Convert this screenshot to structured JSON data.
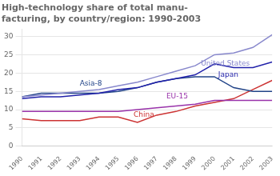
{
  "chart_data": {
    "type": "line",
    "title": "High-technology share of total manu-\nfacturing, by country/region: 1990-2003",
    "x": [
      1990,
      1991,
      1992,
      1993,
      1994,
      1995,
      1996,
      1997,
      1998,
      1999,
      2000,
      2001,
      2002,
      2003
    ],
    "series": [
      {
        "name": "United States",
        "color": "#8888cc",
        "values": [
          13.5,
          14.0,
          14.5,
          15.0,
          15.5,
          16.5,
          17.5,
          19.0,
          20.5,
          22.0,
          25.0,
          25.5,
          27.0,
          30.5
        ]
      },
      {
        "name": "Japan",
        "color": "#2222aa",
        "values": [
          13.0,
          13.5,
          13.5,
          14.0,
          14.5,
          15.5,
          16.0,
          17.5,
          18.5,
          19.5,
          22.5,
          21.5,
          21.5,
          23.0
        ]
      },
      {
        "name": "Asia-8",
        "color": "#224488",
        "values": [
          13.5,
          14.5,
          14.5,
          14.5,
          14.5,
          15.0,
          16.0,
          17.5,
          18.5,
          19.0,
          19.0,
          16.0,
          15.0,
          15.0
        ]
      },
      {
        "name": "EU-15",
        "color": "#9933aa",
        "values": [
          9.5,
          9.5,
          9.5,
          9.5,
          9.5,
          9.5,
          10.0,
          10.5,
          11.0,
          11.5,
          12.5,
          12.5,
          12.5,
          12.5
        ]
      },
      {
        "name": "China",
        "color": "#cc3333",
        "values": [
          7.5,
          7.0,
          7.0,
          7.0,
          8.0,
          8.0,
          6.5,
          8.5,
          9.5,
          11.0,
          12.0,
          13.0,
          15.5,
          18.0
        ]
      }
    ],
    "annotations": [
      {
        "text": "United States",
        "x": 1999.3,
        "y": 22.5,
        "color": "#8888cc"
      },
      {
        "text": "Japan",
        "x": 2000.2,
        "y": 19.5,
        "color": "#2222aa"
      },
      {
        "text": "Asia-8",
        "x": 1993.0,
        "y": 17.0,
        "color": "#224488"
      },
      {
        "text": "EU-15",
        "x": 1997.5,
        "y": 13.5,
        "color": "#9933aa"
      },
      {
        "text": "China",
        "x": 1995.8,
        "y": 8.5,
        "color": "#cc3333"
      }
    ],
    "xlim": [
      1990,
      2003
    ],
    "xticks": [
      1990,
      1991,
      1992,
      1993,
      1994,
      1995,
      1996,
      1997,
      1998,
      1999,
      2000,
      2001,
      2002,
      2003
    ],
    "ylim": [
      0,
      32
    ],
    "yticks": [
      0,
      5,
      10,
      15,
      20,
      25,
      30
    ],
    "grid": true,
    "legend": "none"
  }
}
